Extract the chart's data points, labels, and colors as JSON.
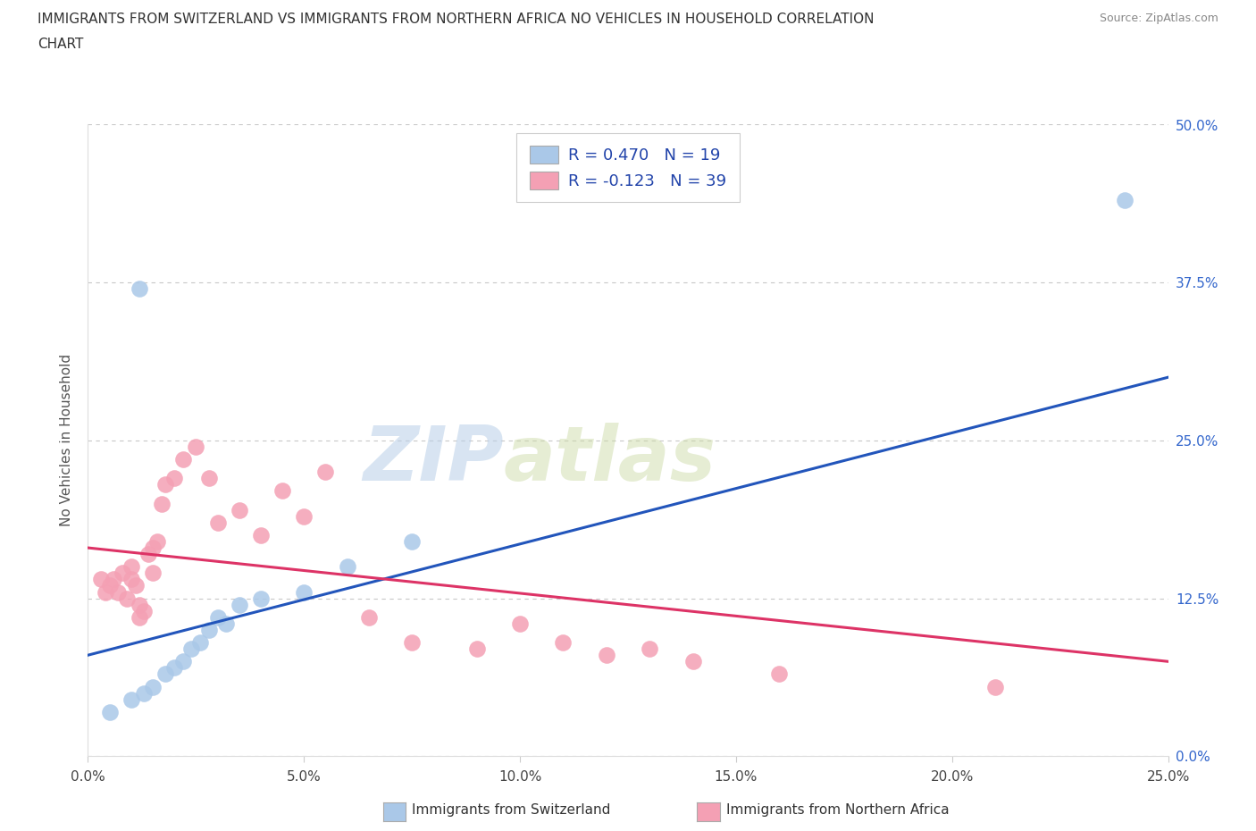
{
  "title_line1": "IMMIGRANTS FROM SWITZERLAND VS IMMIGRANTS FROM NORTHERN AFRICA NO VEHICLES IN HOUSEHOLD CORRELATION",
  "title_line2": "CHART",
  "source": "Source: ZipAtlas.com",
  "ylabel_label": "No Vehicles in Household",
  "ytick_values": [
    0.0,
    12.5,
    25.0,
    37.5,
    50.0
  ],
  "xtick_values": [
    0.0,
    5.0,
    10.0,
    15.0,
    20.0,
    25.0
  ],
  "xlim": [
    0.0,
    25.0
  ],
  "ylim": [
    0.0,
    50.0
  ],
  "legend_R1": "R = 0.470",
  "legend_N1": "N = 19",
  "legend_R2": "R = -0.123",
  "legend_N2": "N = 39",
  "color_swiss": "#aac8e8",
  "color_nafrica": "#f4a0b4",
  "line_swiss": "#2255bb",
  "line_nafrica": "#dd3366",
  "watermark_zip": "ZIP",
  "watermark_atlas": "atlas",
  "swiss_line_x0": 0.0,
  "swiss_line_y0": 8.0,
  "swiss_line_x1": 25.0,
  "swiss_line_y1": 30.0,
  "nafrica_line_x0": 0.0,
  "nafrica_line_y0": 16.5,
  "nafrica_line_x1": 25.0,
  "nafrica_line_y1": 7.5,
  "swiss_x": [
    0.5,
    1.0,
    1.3,
    1.5,
    1.8,
    2.0,
    2.2,
    2.4,
    2.6,
    2.8,
    3.0,
    3.2,
    3.5,
    4.0,
    5.0,
    6.0,
    7.5,
    24.0,
    1.2
  ],
  "swiss_y": [
    3.5,
    4.5,
    5.0,
    5.5,
    6.5,
    7.0,
    7.5,
    8.5,
    9.0,
    10.0,
    11.0,
    10.5,
    12.0,
    12.5,
    13.0,
    15.0,
    17.0,
    44.0,
    37.0
  ],
  "nafrica_x": [
    0.3,
    0.5,
    0.7,
    0.9,
    1.0,
    1.1,
    1.2,
    1.3,
    1.4,
    1.5,
    1.6,
    1.7,
    1.8,
    2.0,
    2.2,
    2.5,
    2.8,
    3.0,
    3.5,
    4.0,
    4.5,
    5.0,
    5.5,
    6.5,
    7.5,
    9.0,
    10.0,
    11.0,
    12.0,
    13.0,
    14.0,
    16.0,
    21.0,
    0.4,
    0.6,
    0.8,
    1.0,
    1.2,
    1.5
  ],
  "nafrica_y": [
    14.0,
    13.5,
    13.0,
    12.5,
    14.0,
    13.5,
    12.0,
    11.5,
    16.0,
    14.5,
    17.0,
    20.0,
    21.5,
    22.0,
    23.5,
    24.5,
    22.0,
    18.5,
    19.5,
    17.5,
    21.0,
    19.0,
    22.5,
    11.0,
    9.0,
    8.5,
    10.5,
    9.0,
    8.0,
    8.5,
    7.5,
    6.5,
    5.5,
    13.0,
    14.0,
    14.5,
    15.0,
    11.0,
    16.5
  ]
}
